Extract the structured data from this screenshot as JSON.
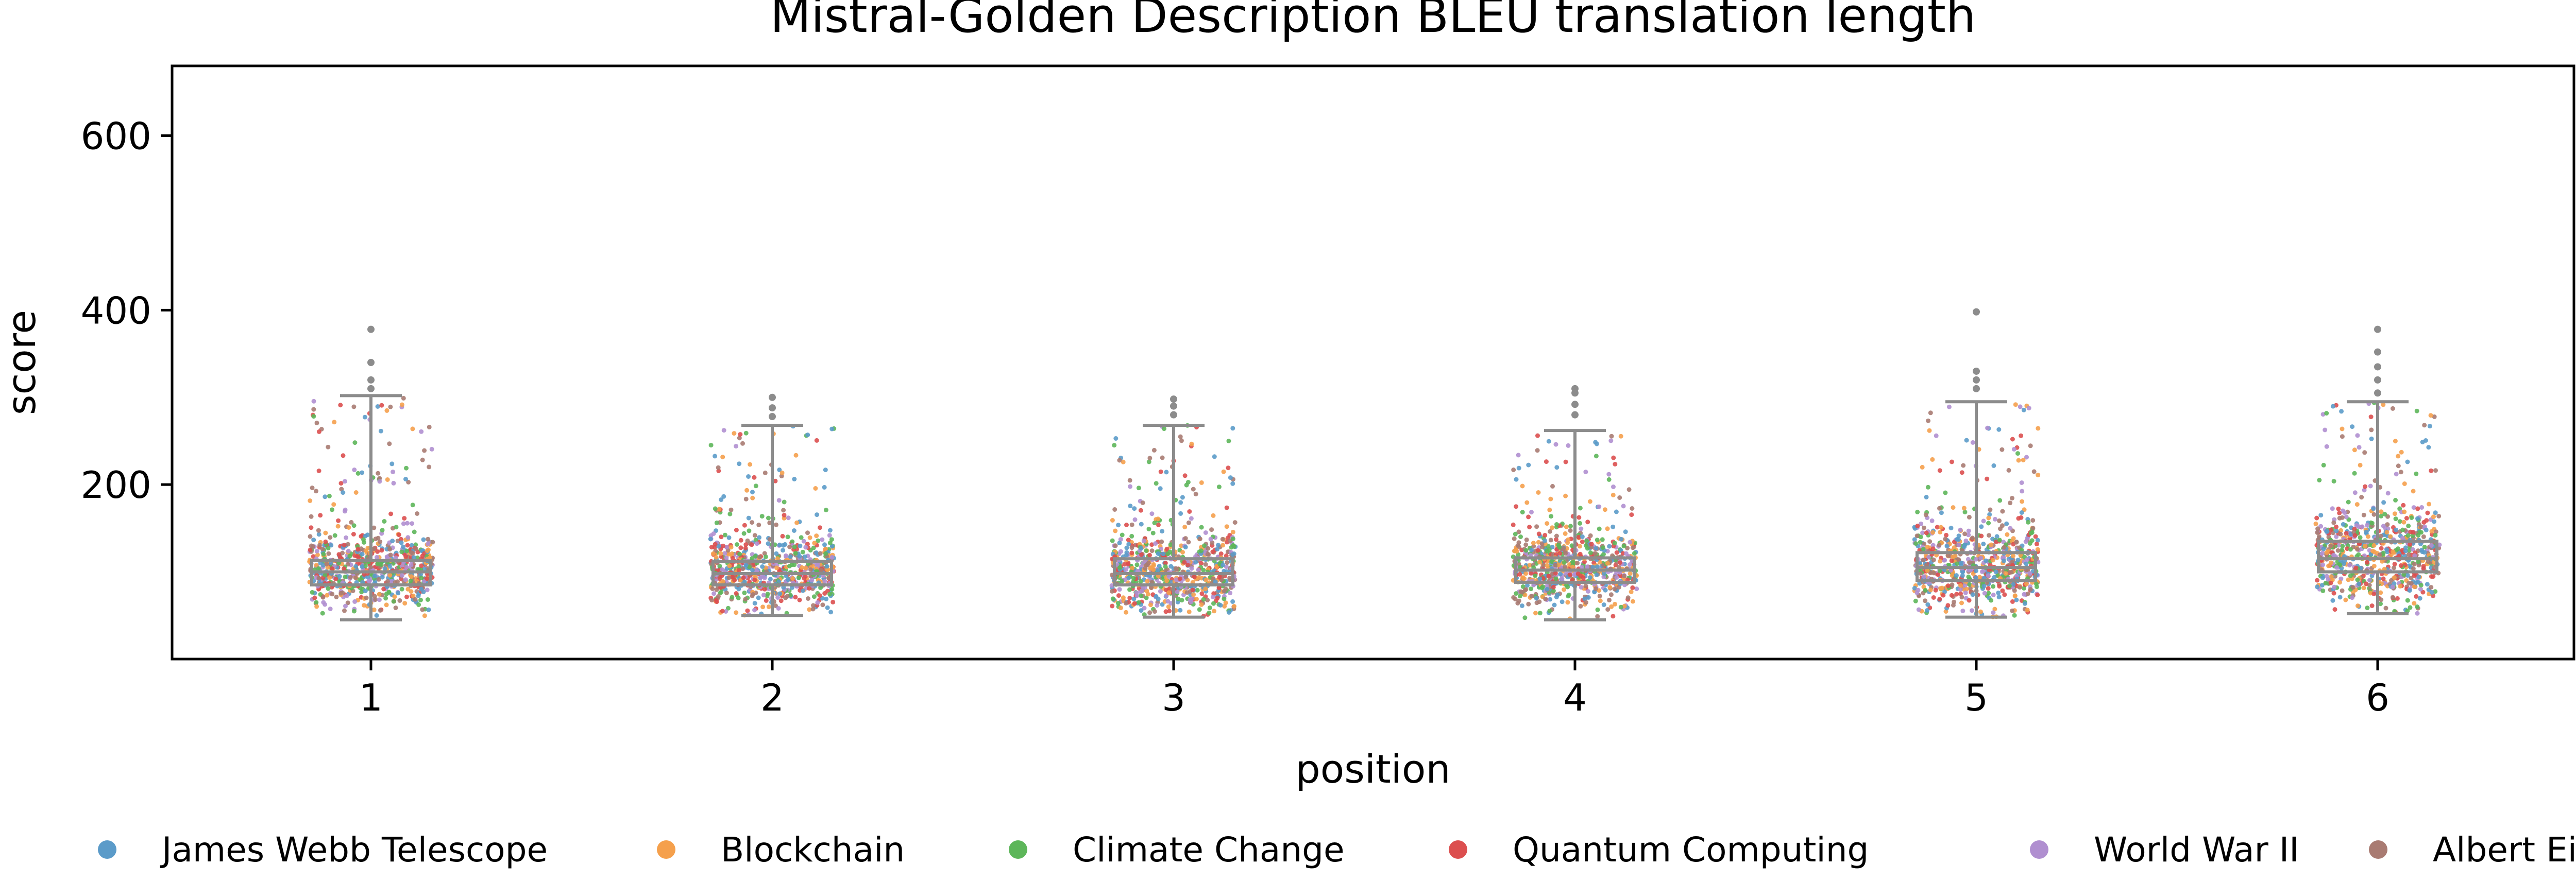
{
  "chart_data": {
    "type": "boxplot-strip",
    "title": "Mistral-Golden Description BLEU translation length",
    "xlabel": "position",
    "ylabel": "score",
    "ylim": [
      0,
      680
    ],
    "yticks": [
      200,
      400,
      600
    ],
    "grid": false,
    "legend_position": "bottom",
    "categories": [
      "1",
      "2",
      "3",
      "4",
      "5",
      "6"
    ],
    "boxes": [
      {
        "position": "1",
        "whisker_low": 45,
        "q1": 85,
        "median": 100,
        "q3": 113,
        "whisker_high": 302,
        "outliers": [
          310,
          320,
          340,
          378
        ]
      },
      {
        "position": "2",
        "whisker_low": 50,
        "q1": 85,
        "median": 98,
        "q3": 112,
        "whisker_high": 268,
        "outliers": [
          278,
          288,
          300
        ]
      },
      {
        "position": "3",
        "whisker_low": 48,
        "q1": 85,
        "median": 98,
        "q3": 115,
        "whisker_high": 268,
        "outliers": [
          280,
          290,
          298
        ]
      },
      {
        "position": "4",
        "whisker_low": 45,
        "q1": 88,
        "median": 102,
        "q3": 116,
        "whisker_high": 262,
        "outliers": [
          280,
          292,
          305,
          310
        ]
      },
      {
        "position": "5",
        "whisker_low": 48,
        "q1": 90,
        "median": 105,
        "q3": 122,
        "whisker_high": 295,
        "outliers": [
          310,
          320,
          330,
          398
        ]
      },
      {
        "position": "6",
        "whisker_low": 52,
        "q1": 100,
        "median": 115,
        "q3": 135,
        "whisker_high": 295,
        "outliers": [
          305,
          320,
          335,
          352,
          378
        ]
      }
    ],
    "series": [
      {
        "name": "James Webb Telescope",
        "color": "#5B9BC9"
      },
      {
        "name": "Blockchain",
        "color": "#F5A04C"
      },
      {
        "name": "Climate Change",
        "color": "#5DB65A"
      },
      {
        "name": "Quantum Computing",
        "color": "#DC4F4F"
      },
      {
        "name": "World War II",
        "color": "#B08FD0"
      },
      {
        "name": "Albert Einstein",
        "color": "#A97B72"
      }
    ],
    "box_color": "#8c8c8c"
  }
}
